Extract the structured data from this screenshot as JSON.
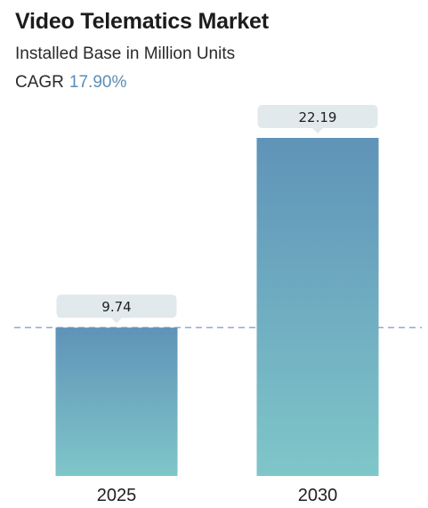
{
  "title": "Video Telematics Market",
  "subtitle": "Installed Base in Million Units",
  "cagr_label": "CAGR",
  "cagr_value": "17.90%",
  "colors": {
    "bar_top": "#5f93b8",
    "bar_bottom": "#7fc6c9",
    "label_box": "#e1e9ec",
    "dashed_line": "#6f8fb5"
  },
  "chart_data": {
    "type": "bar",
    "categories": [
      "2025",
      "2030"
    ],
    "values": [
      9.74,
      22.19
    ],
    "value_labels": [
      "9.74",
      "22.19"
    ],
    "title": "Video Telematics Market",
    "xlabel": "",
    "ylabel": "",
    "grid": false,
    "reference_line": "dashed line at first value"
  }
}
